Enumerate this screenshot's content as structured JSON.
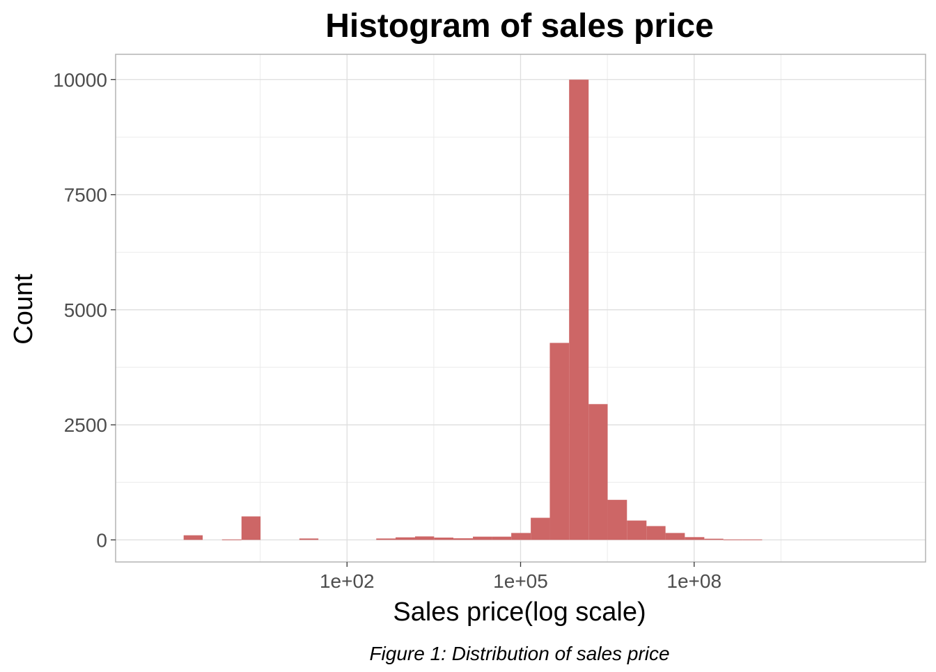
{
  "chart_data": {
    "type": "bar",
    "title": "Histogram of sales price",
    "xlabel": "Sales price(log scale)",
    "ylabel": "Count",
    "caption": "Figure 1: Distribution of sales price",
    "x_scale": "log10",
    "xlim": [
      0.01,
      1000000000000
    ],
    "ylim": [
      -480,
      10550
    ],
    "x_ticks": [
      {
        "value": 100,
        "label": "1e+02"
      },
      {
        "value": 100000,
        "label": "1e+05"
      },
      {
        "value": 100000000,
        "label": "1e+08"
      }
    ],
    "y_ticks": [
      {
        "value": 0,
        "label": "0"
      },
      {
        "value": 2500,
        "label": "2500"
      },
      {
        "value": 5000,
        "label": "5000"
      },
      {
        "value": 7500,
        "label": "7500"
      },
      {
        "value": 10000,
        "label": "10000"
      }
    ],
    "grid": true,
    "legend": "none",
    "bar_color": "#cd6666",
    "bins": [
      {
        "x_start": 0.15,
        "x_end": 0.32,
        "count": 100
      },
      {
        "x_start": 0.32,
        "x_end": 0.69,
        "count": 0
      },
      {
        "x_start": 0.69,
        "x_end": 1.5,
        "count": 10
      },
      {
        "x_start": 1.5,
        "x_end": 3.2,
        "count": 510
      },
      {
        "x_start": 3.2,
        "x_end": 6.9,
        "count": 0
      },
      {
        "x_start": 6.9,
        "x_end": 15,
        "count": 0
      },
      {
        "x_start": 15,
        "x_end": 32,
        "count": 30
      },
      {
        "x_start": 32,
        "x_end": 69,
        "count": 0
      },
      {
        "x_start": 69,
        "x_end": 150,
        "count": 0
      },
      {
        "x_start": 150,
        "x_end": 320,
        "count": 0
      },
      {
        "x_start": 320,
        "x_end": 690,
        "count": 30
      },
      {
        "x_start": 690,
        "x_end": 1500,
        "count": 55
      },
      {
        "x_start": 1500,
        "x_end": 3200,
        "count": 75
      },
      {
        "x_start": 3200,
        "x_end": 6900,
        "count": 50
      },
      {
        "x_start": 6900,
        "x_end": 15000,
        "count": 35
      },
      {
        "x_start": 15000,
        "x_end": 32000,
        "count": 70
      },
      {
        "x_start": 32000,
        "x_end": 69000,
        "count": 70
      },
      {
        "x_start": 69000,
        "x_end": 150000,
        "count": 150
      },
      {
        "x_start": 150000,
        "x_end": 320000,
        "count": 480
      },
      {
        "x_start": 320000,
        "x_end": 690000,
        "count": 4280
      },
      {
        "x_start": 690000,
        "x_end": 1500000,
        "count": 10000
      },
      {
        "x_start": 1500000,
        "x_end": 3200000,
        "count": 2950
      },
      {
        "x_start": 3200000,
        "x_end": 6900000,
        "count": 870
      },
      {
        "x_start": 6900000,
        "x_end": 15000000,
        "count": 420
      },
      {
        "x_start": 15000000,
        "x_end": 32000000,
        "count": 300
      },
      {
        "x_start": 32000000,
        "x_end": 69000000,
        "count": 150
      },
      {
        "x_start": 69000000,
        "x_end": 150000000,
        "count": 60
      },
      {
        "x_start": 150000000,
        "x_end": 320000000,
        "count": 25
      },
      {
        "x_start": 320000000,
        "x_end": 690000000,
        "count": 10
      },
      {
        "x_start": 690000000,
        "x_end": 1500000000,
        "count": 10
      }
    ]
  }
}
